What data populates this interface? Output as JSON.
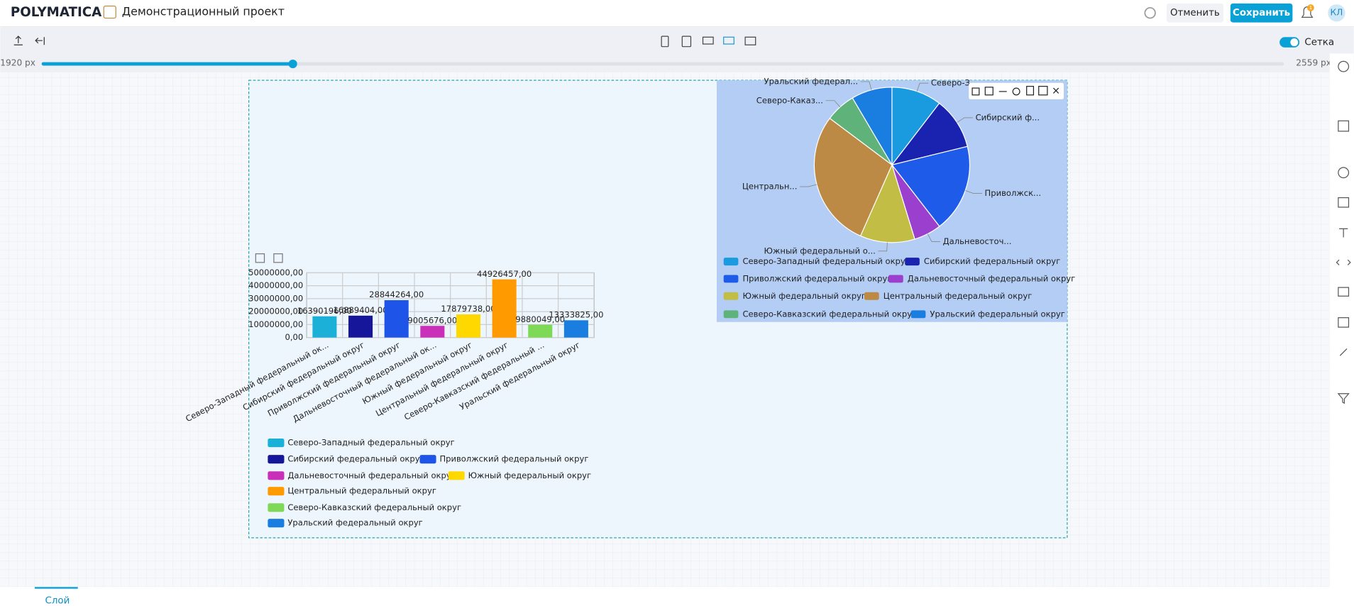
{
  "header": {
    "logo": "POLYMATICA",
    "project": "Демонстрационный проект",
    "cancel": "Отменить",
    "save": "Сохранить",
    "notifications": "1",
    "avatar": "КЛ"
  },
  "toolbar": {
    "grid_toggle": "Сетка"
  },
  "slider": {
    "min_label": "1920 px",
    "max_label": "2559 px"
  },
  "bottom": {
    "layer_tab": "Слой"
  },
  "chart_data": [
    {
      "type": "bar",
      "categories": [
        "Северо-Западный федеральный ок...",
        "Сибирский федеральный округ",
        "Приволжский федеральный округ",
        "Дальневосточный федеральный ок...",
        "Южный федеральный округ",
        "Центральный федеральный округ",
        "Северо-Кавказский федеральный ...",
        "Уральский федеральный округ"
      ],
      "values": [
        16390196,
        16889404,
        28844264,
        9005676,
        17879738,
        44926457,
        9880049,
        13333825
      ],
      "value_labels": [
        "16390196,00",
        "16889404,00",
        "28844264,00",
        "9005676,00",
        "17879738,00",
        "44926457,00",
        "9880049,00",
        "13333825,00"
      ],
      "colors": [
        "#1ab0d8",
        "#16169a",
        "#1e55e8",
        "#c92fb8",
        "#ffd800",
        "#ff9a00",
        "#7ed957",
        "#1a7ee0"
      ],
      "legend": [
        "Северо-Западный федеральный округ",
        "Сибирский федеральный округ",
        "Приволжский федеральный округ",
        "Дальневосточный федеральный округ",
        "Южный федеральный округ",
        "Центральный федеральный округ",
        "Северо-Кавказский федеральный округ",
        "Уральский федеральный округ"
      ],
      "ylim": [
        0,
        50000000
      ],
      "yticks": [
        {
          "value": 0,
          "label": "0,00"
        },
        {
          "value": 10000000,
          "label": "10000000,00"
        },
        {
          "value": 20000000,
          "label": "20000000,00"
        },
        {
          "value": 30000000,
          "label": "30000000,00"
        },
        {
          "value": 40000000,
          "label": "40000000,00"
        },
        {
          "value": 50000000,
          "label": "50000000,00"
        }
      ],
      "grid": true
    },
    {
      "type": "pie",
      "categories": [
        "Северо-З...",
        "Сибирский ф...",
        "Приволжск...",
        "Дальневосточ...",
        "Южный федеральный о...",
        "Центральн...",
        "Северо-Каказ...",
        "Уральский федерал..."
      ],
      "values": [
        16390196,
        16889404,
        28844264,
        9005676,
        17879738,
        44926457,
        9880049,
        13333825
      ],
      "colors": [
        "#1a9be0",
        "#1a23b0",
        "#1e5be8",
        "#9b3fcf",
        "#c2bd45",
        "#bd8a45",
        "#5fb37a",
        "#1a7ee0"
      ],
      "legend": [
        "Северо-Западный федеральный округ",
        "Сибирский федеральный округ",
        "Приволжский федеральный округ",
        "Дальневосточный федеральный округ",
        "Южный федеральный округ",
        "Центральный федеральный округ",
        "Северо-Кавказский федеральный округ",
        "Уральский федеральный округ"
      ]
    }
  ]
}
